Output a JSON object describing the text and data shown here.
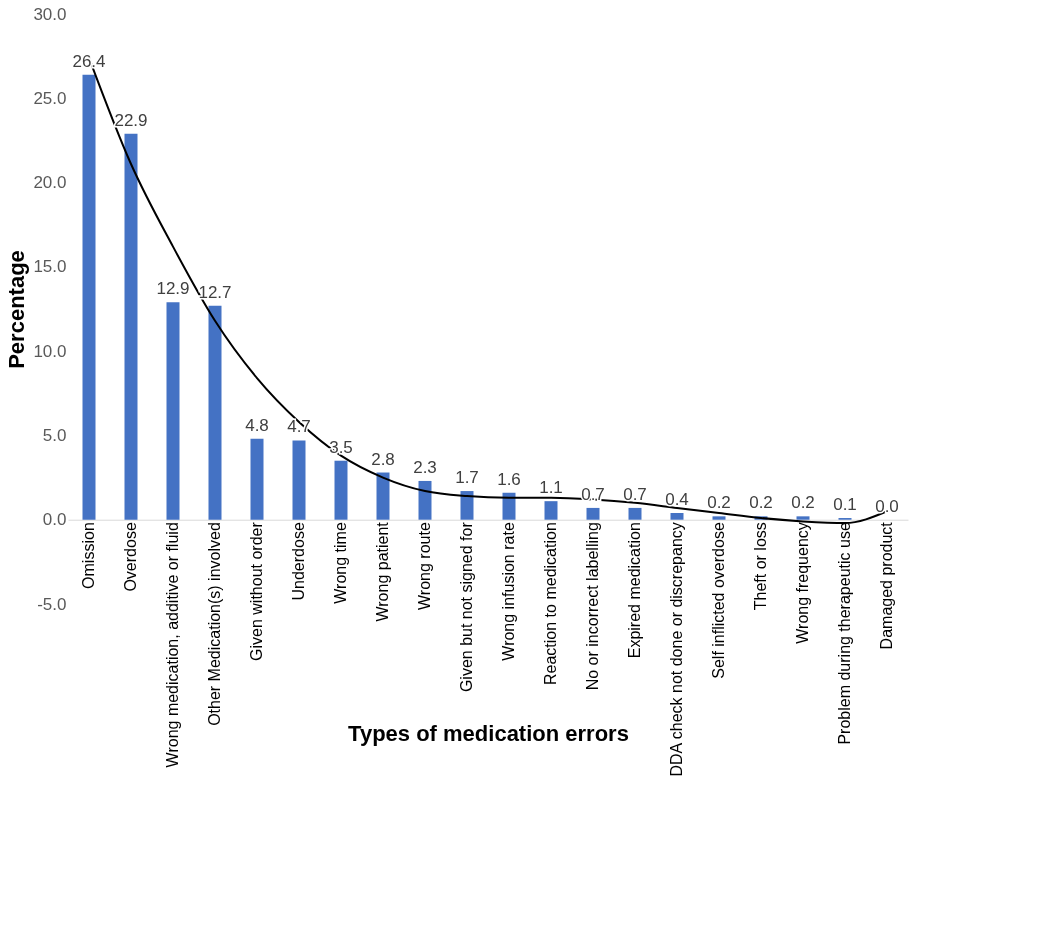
{
  "chart_data": {
    "type": "bar",
    "xlabel": "Types of medication errors",
    "ylabel": "Percentage",
    "categories": [
      "Omission",
      "Overdose",
      "Wrong medication, additive or fluid",
      "Other Medication(s) involved",
      "Given without order",
      "Underdose",
      "Wrong time",
      "Wrong patient",
      "Wrong route",
      "Given but not signed for",
      "Wrong infusion rate",
      "Reaction to medication",
      "No or incorrect labelling",
      "Expired medication",
      "DDA check not done or discrepancy",
      "Self inflicted overdose",
      "Theft or loss",
      "Wrong frequency",
      "Problem during therapeutic use",
      "Damaged product"
    ],
    "series": [
      {
        "color": "#4472c4",
        "values": [
          26.4,
          22.9,
          12.9,
          12.7,
          4.8,
          4.7,
          3.5,
          2.8,
          2.3,
          1.7,
          1.6,
          1.1,
          0.7,
          0.7,
          0.4,
          0.2,
          0.2,
          0.2,
          0.1,
          0.0
        ],
        "value_labels": [
          "26.4",
          "22.9",
          "12.9",
          "12.7",
          "4.8",
          "4.7",
          "3.5",
          "2.8",
          "2.3",
          "1.7",
          "1.6",
          "1.1",
          "0.7",
          "0.7",
          "0.4",
          "0.2",
          "0.2",
          "0.2",
          "0.1",
          "0.0"
        ]
      },
      {
        "type": "line",
        "color": "#000000",
        "values": [
          27.4,
          21.1,
          16.2,
          11.8,
          8.4,
          5.8,
          3.8,
          2.5,
          1.7,
          1.4,
          1.3,
          1.3,
          1.2,
          1.0,
          0.7,
          0.4,
          0.1,
          -0.1,
          -0.2,
          0.5
        ]
      }
    ],
    "ylim": [
      -5,
      30
    ],
    "yticks": [
      {
        "value": -5,
        "label": "-5.0"
      },
      {
        "value": 0,
        "label": "0.0"
      },
      {
        "value": 5,
        "label": "5.0"
      },
      {
        "value": 10,
        "label": "10.0"
      },
      {
        "value": 15,
        "label": "15.0"
      },
      {
        "value": 20,
        "label": "20.0"
      },
      {
        "value": 25,
        "label": "25.0"
      },
      {
        "value": 30,
        "label": "30.0"
      }
    ],
    "grid": false,
    "marker": "none",
    "line_style": "solid"
  }
}
